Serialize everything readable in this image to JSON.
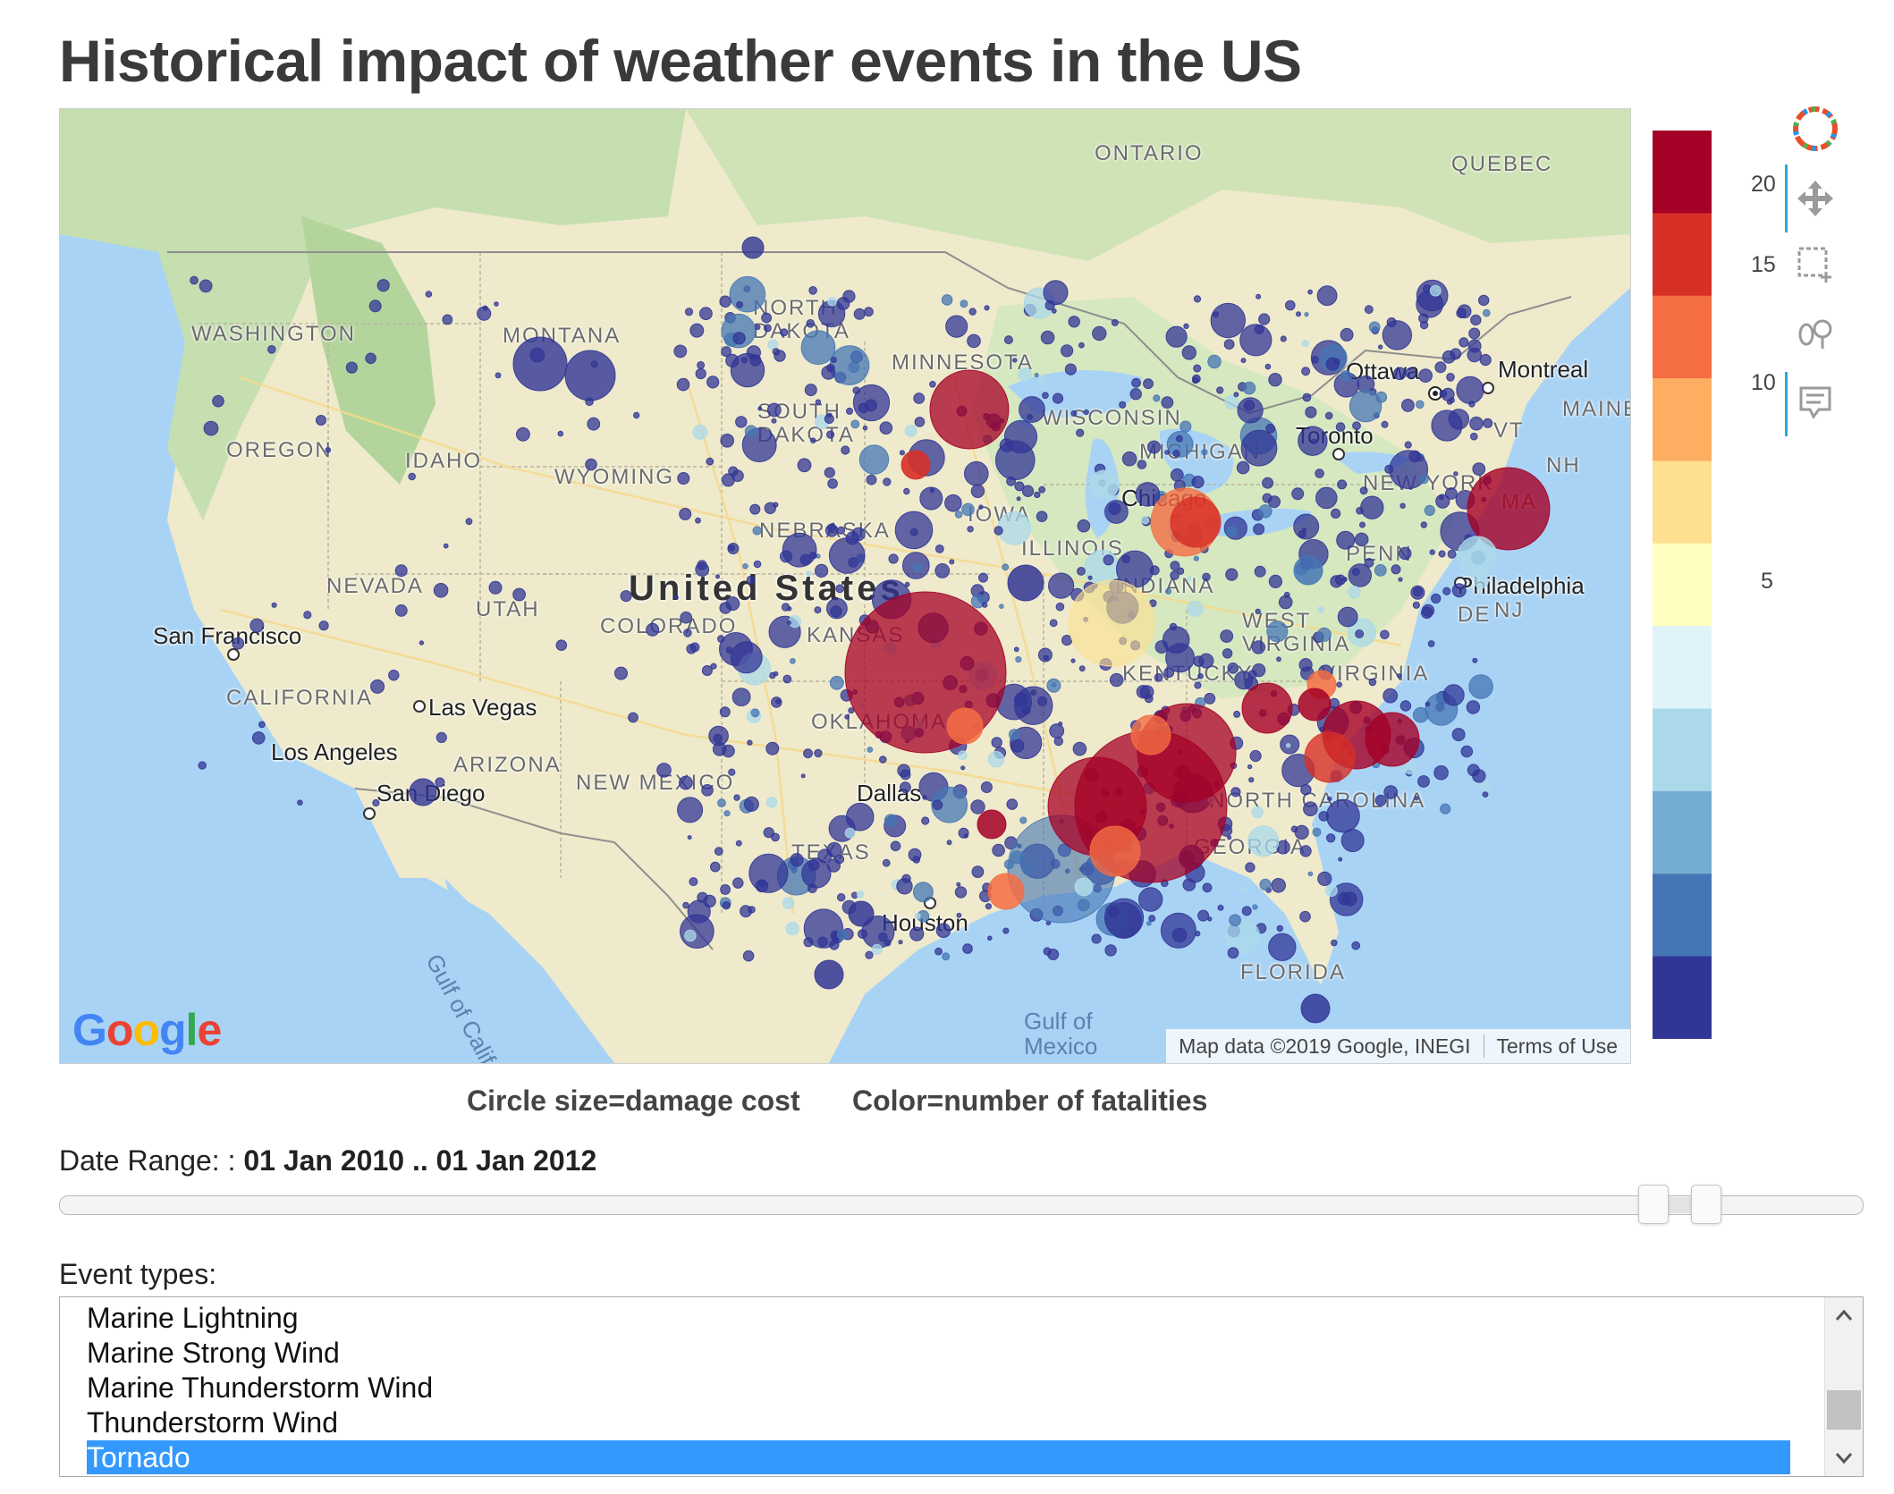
{
  "title": "Historical impact of weather events in the US",
  "map": {
    "state_labels": [
      "WASHINGTON",
      "MONTANA",
      "NORTH DAKOTA",
      "MINNESOTA",
      "OREGON",
      "IDAHO",
      "SOUTH DAKOTA",
      "WYOMING",
      "NEBRASKA",
      "IOWA",
      "NEVADA",
      "UTAH",
      "COLORADO",
      "KANSAS",
      "CALIFORNIA",
      "ARIZONA",
      "NEW MEXICO",
      "TEXAS",
      "OKLAHOMA",
      "MICHIGAN",
      "WISCONSIN",
      "ILLINOIS",
      "INDIANA",
      "KENTUCKY",
      "WEST VIRGINIA",
      "VIRGINIA",
      "PENN",
      "NEW YORK",
      "NORTH CAROLINA",
      "GEORGIA",
      "FLORIDA",
      "ONTARIO",
      "QUEBEC",
      "VT",
      "NH",
      "MA",
      "NJ",
      "DE",
      "MAINE"
    ],
    "cities": [
      "San Francisco",
      "Las Vegas",
      "Los Angeles",
      "San Diego",
      "Dallas",
      "Houston",
      "Chicago",
      "Toronto",
      "Ottawa",
      "Montreal",
      "Philadelphia"
    ],
    "country_label": "United States",
    "water_labels": [
      "Gulf of California",
      "Gulf of Mexico"
    ],
    "google_logo": "Google",
    "attribution": "Map data ©2019 Google, INEGI",
    "terms": "Terms of Use"
  },
  "colorbar": {
    "ticks": [
      "20",
      "15",
      "10",
      "5"
    ],
    "colors": [
      "#a50026",
      "#d73027",
      "#f46d43",
      "#fdae61",
      "#fee090",
      "#ffffbf",
      "#e0f3f8",
      "#abd9e9",
      "#74add1",
      "#4575b4",
      "#313695"
    ]
  },
  "toolbar": {
    "logo": "bokeh-logo-icon",
    "tools": [
      "pan-icon",
      "box-zoom-icon",
      "wheel-zoom-icon",
      "hover-icon"
    ]
  },
  "captions": {
    "size": "Circle size=damage cost",
    "color": "Color=number of fatalities"
  },
  "date_range": {
    "label": "Date Range: :",
    "value": "01 Jan 2010 .. 01 Jan 2012"
  },
  "events": {
    "label": "Event types:",
    "items": [
      "Marine Lightning",
      "Marine Strong Wind",
      "Marine Thunderstorm Wind",
      "Thunderstorm Wind",
      "Tornado"
    ],
    "selected": "Tornado"
  }
}
